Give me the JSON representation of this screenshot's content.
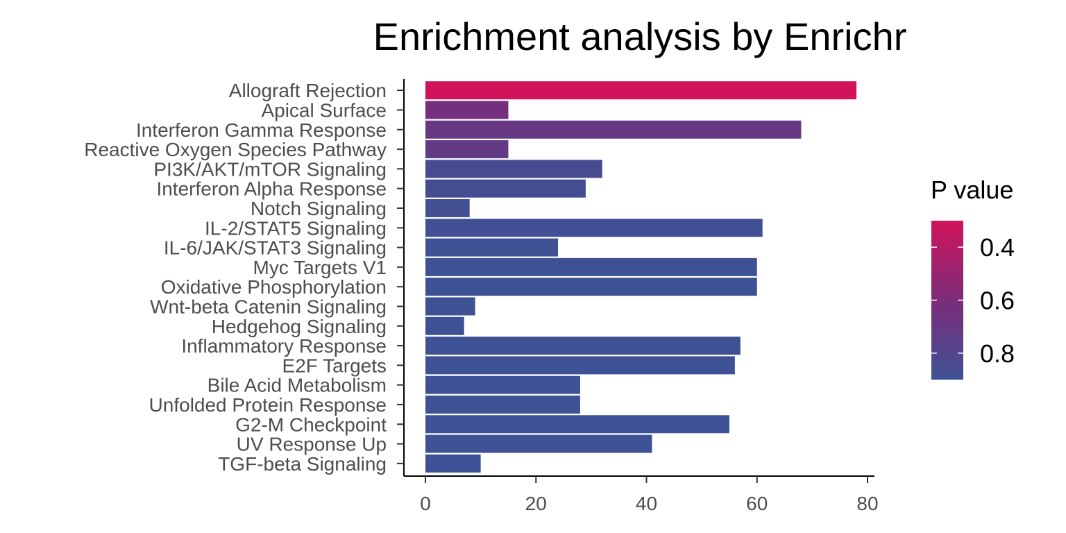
{
  "chart_data": {
    "type": "bar",
    "orientation": "horizontal",
    "title": "Enrichment analysis by Enrichr",
    "xlabel": "",
    "ylabel": "",
    "xlim": [
      0,
      80
    ],
    "x_ticks": [
      0,
      20,
      40,
      60,
      80
    ],
    "grid": false,
    "categories": [
      "Allograft Rejection",
      "Apical Surface",
      "Interferon Gamma Response",
      "Reactive Oxygen Species Pathway",
      "PI3K/AKT/mTOR  Signaling",
      "Interferon Alpha Response",
      "Notch Signaling",
      "IL-2/STAT5 Signaling",
      "IL-6/JAK/STAT3 Signaling",
      "Myc Targets V1",
      "Oxidative Phosphorylation",
      "Wnt-beta Catenin Signaling",
      "Hedgehog Signaling",
      "Inflammatory Response",
      "E2F Targets",
      "Bile Acid Metabolism",
      "Unfolded Protein Response",
      "G2-M Checkpoint",
      "UV Response Up",
      "TGF-beta Signaling"
    ],
    "values": [
      78,
      15,
      68,
      15,
      32,
      29,
      8,
      61,
      24,
      60,
      60,
      9,
      7,
      57,
      56,
      28,
      28,
      55,
      41,
      10
    ],
    "p_values": [
      0.3,
      0.63,
      0.7,
      0.72,
      0.85,
      0.87,
      0.88,
      0.89,
      0.9,
      0.9,
      0.9,
      0.9,
      0.9,
      0.9,
      0.9,
      0.9,
      0.9,
      0.9,
      0.9,
      0.9
    ],
    "legend": {
      "title": "P value",
      "position": "right",
      "ticks": [
        "0.4",
        "0.6",
        "0.8"
      ],
      "tick_values": [
        0.4,
        0.6,
        0.8
      ],
      "range": [
        0.3,
        0.9
      ],
      "color_low": "#d1145a",
      "color_high": "#3f5195"
    }
  }
}
